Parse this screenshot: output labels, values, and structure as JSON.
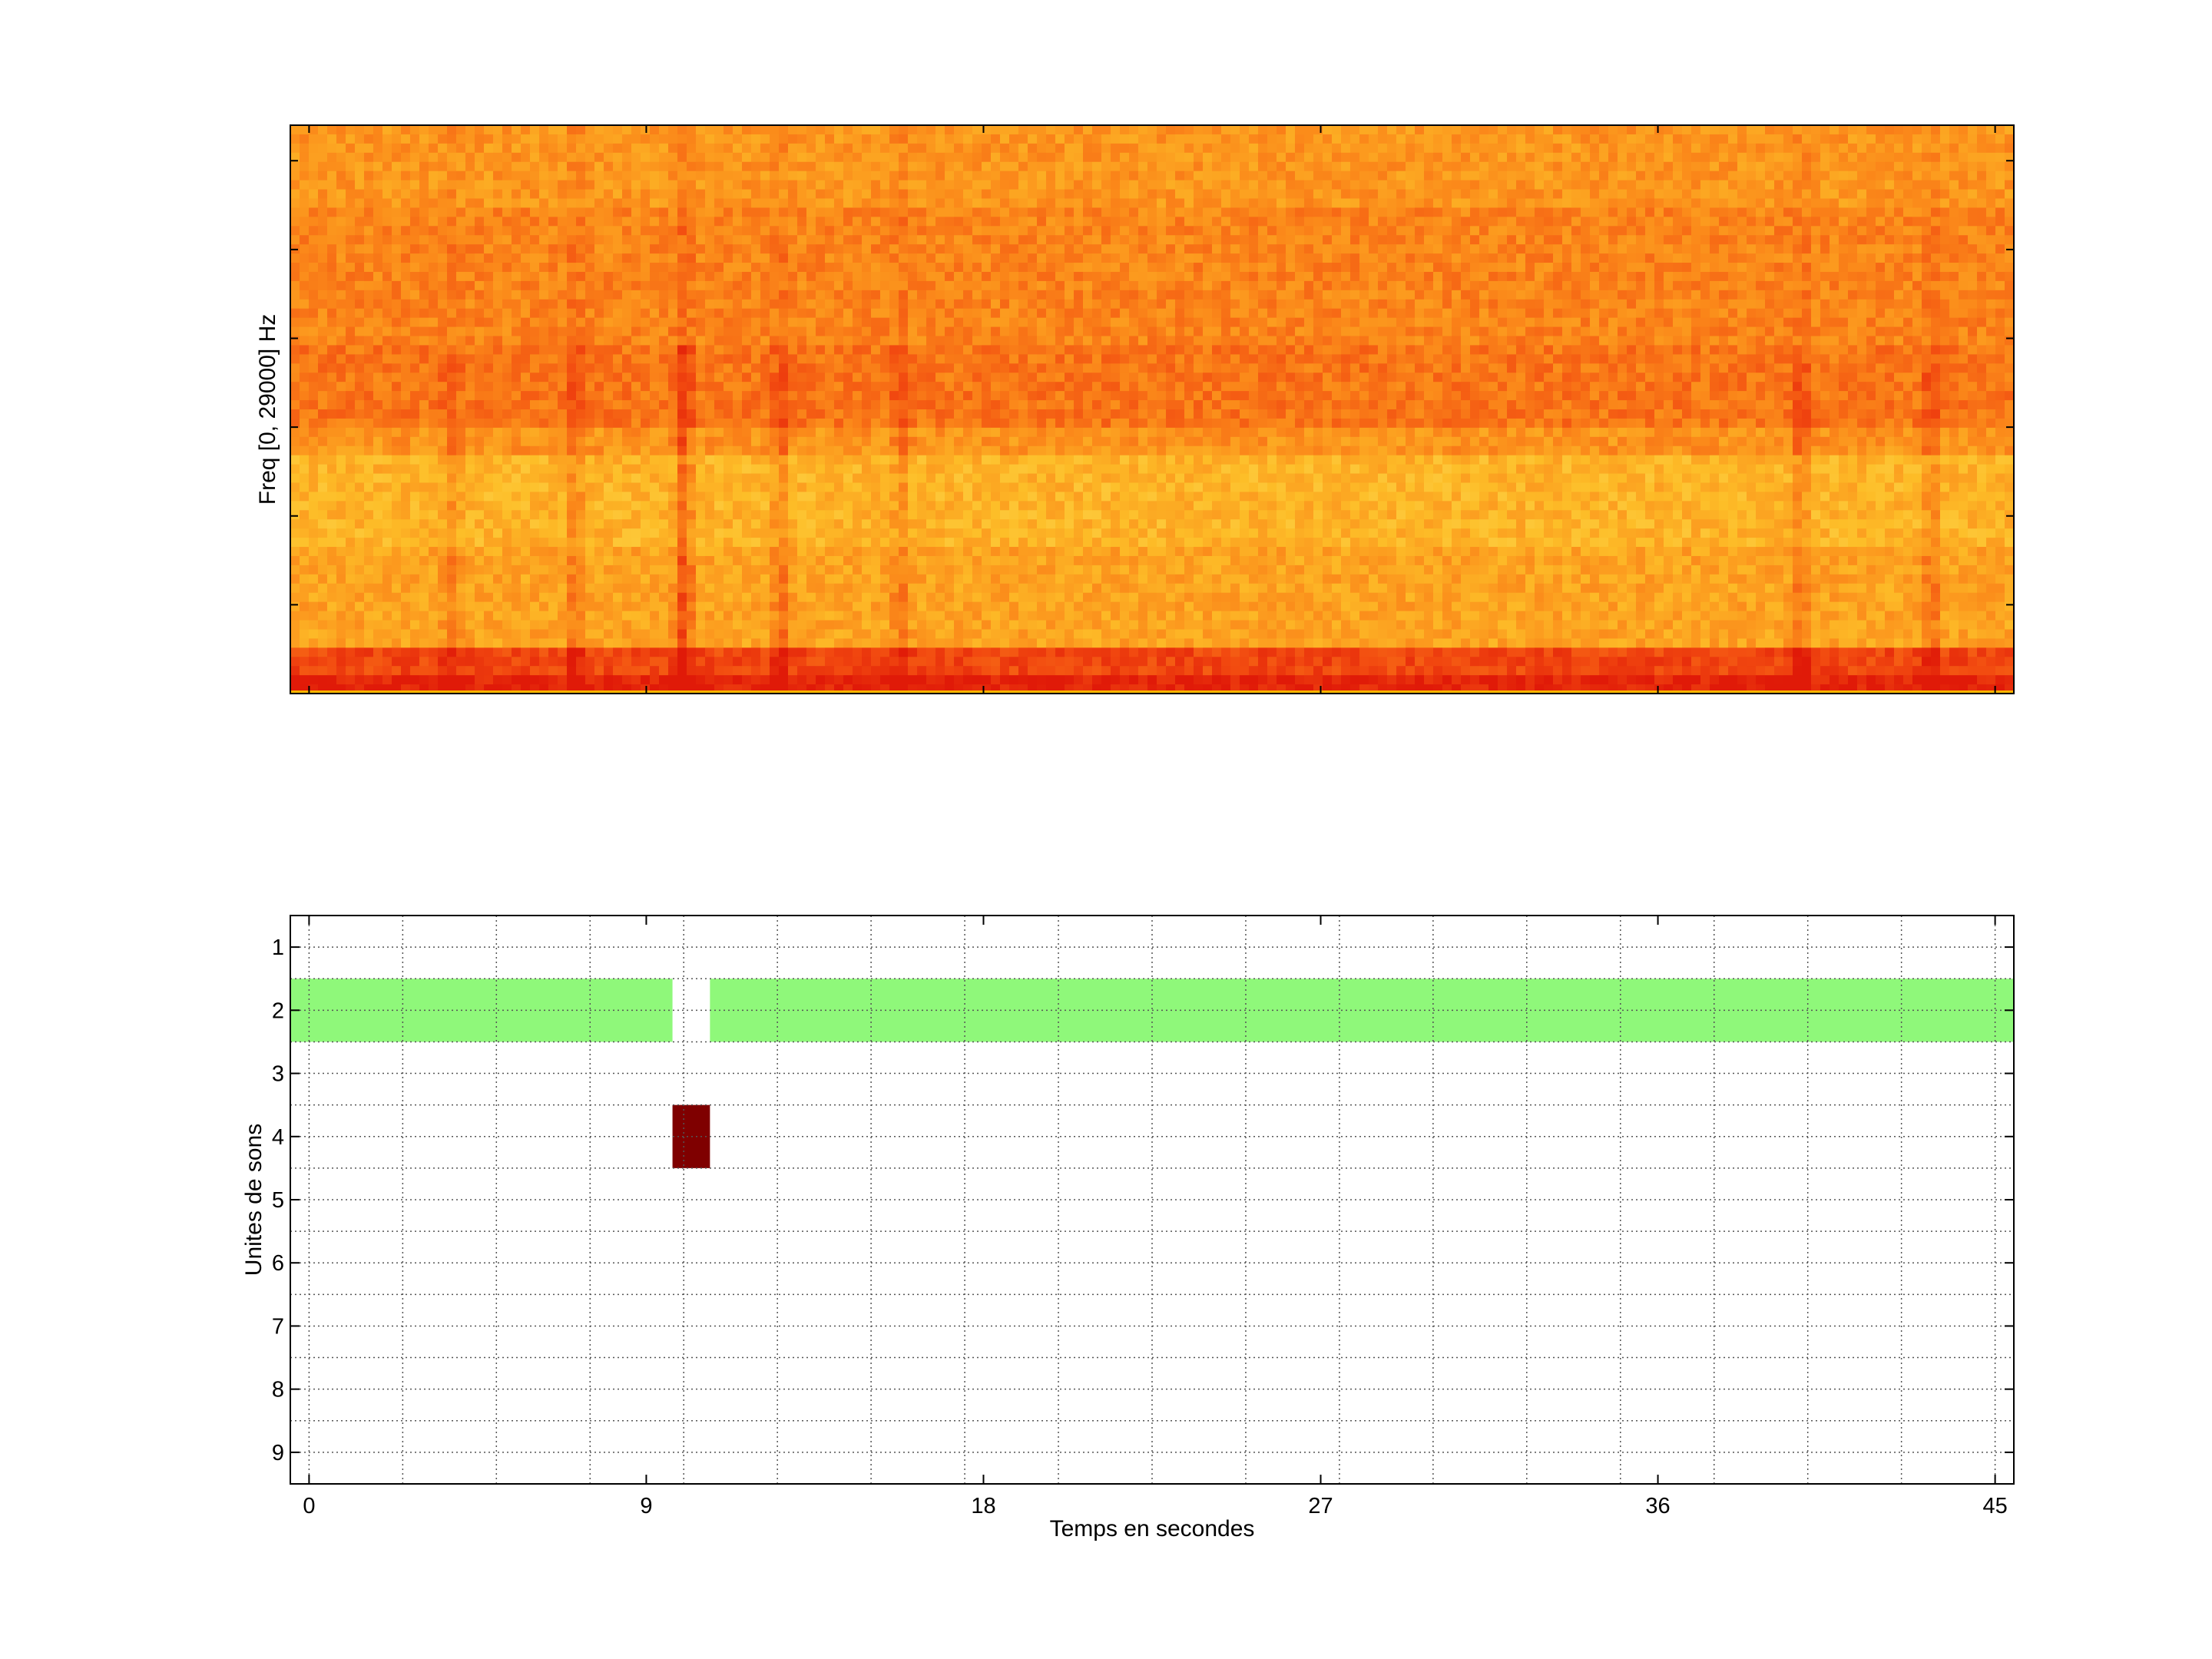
{
  "chart_data": [
    {
      "type": "heatmap",
      "ylabel": "Freq [0, 29000] Hz",
      "xlim": [
        -0.5,
        45.5
      ],
      "colormap": [
        "#e01a08",
        "#f24a10",
        "#fb8a1a",
        "#fdbe28",
        "#ffe36a"
      ],
      "bands": [
        {
          "y_from": 0.0,
          "y_to": 0.03,
          "level": 0.05
        },
        {
          "y_from": 0.03,
          "y_to": 0.08,
          "level": 0.22
        },
        {
          "y_from": 0.08,
          "y_to": 0.25,
          "level": 0.62
        },
        {
          "y_from": 0.25,
          "y_to": 0.42,
          "level": 0.7
        },
        {
          "y_from": 0.42,
          "y_to": 0.47,
          "level": 0.55
        },
        {
          "y_from": 0.47,
          "y_to": 0.62,
          "level": 0.42
        },
        {
          "y_from": 0.62,
          "y_to": 0.85,
          "level": 0.48
        },
        {
          "y_from": 0.85,
          "y_to": 1.0,
          "level": 0.56
        }
      ],
      "streaks": [
        {
          "t": 3.8,
          "strength": 0.4
        },
        {
          "t": 7.1,
          "strength": 0.6
        },
        {
          "t": 10.0,
          "strength": 1.0
        },
        {
          "t": 12.6,
          "strength": 0.6
        },
        {
          "t": 15.8,
          "strength": 0.5
        },
        {
          "t": 39.8,
          "strength": 0.6
        },
        {
          "t": 43.3,
          "strength": 0.6
        }
      ]
    },
    {
      "type": "heatmap",
      "xlabel": "Temps en secondes",
      "ylabel": "Unites de sons",
      "xlim": [
        -0.5,
        45.5
      ],
      "ylim": [
        0.5,
        9.5
      ],
      "grid": true,
      "xticks": [
        0,
        9,
        18,
        27,
        36,
        45
      ],
      "yticks": [
        1,
        2,
        3,
        4,
        5,
        6,
        7,
        8,
        9
      ],
      "segments": [
        {
          "unit": 2,
          "t_start": -0.5,
          "t_end": 9.7,
          "color": "#8ff87a"
        },
        {
          "unit": 2,
          "t_start": 10.7,
          "t_end": 45.5,
          "color": "#8ff87a"
        },
        {
          "unit": 4,
          "t_start": 9.7,
          "t_end": 10.7,
          "color": "#7f0000"
        }
      ]
    }
  ]
}
